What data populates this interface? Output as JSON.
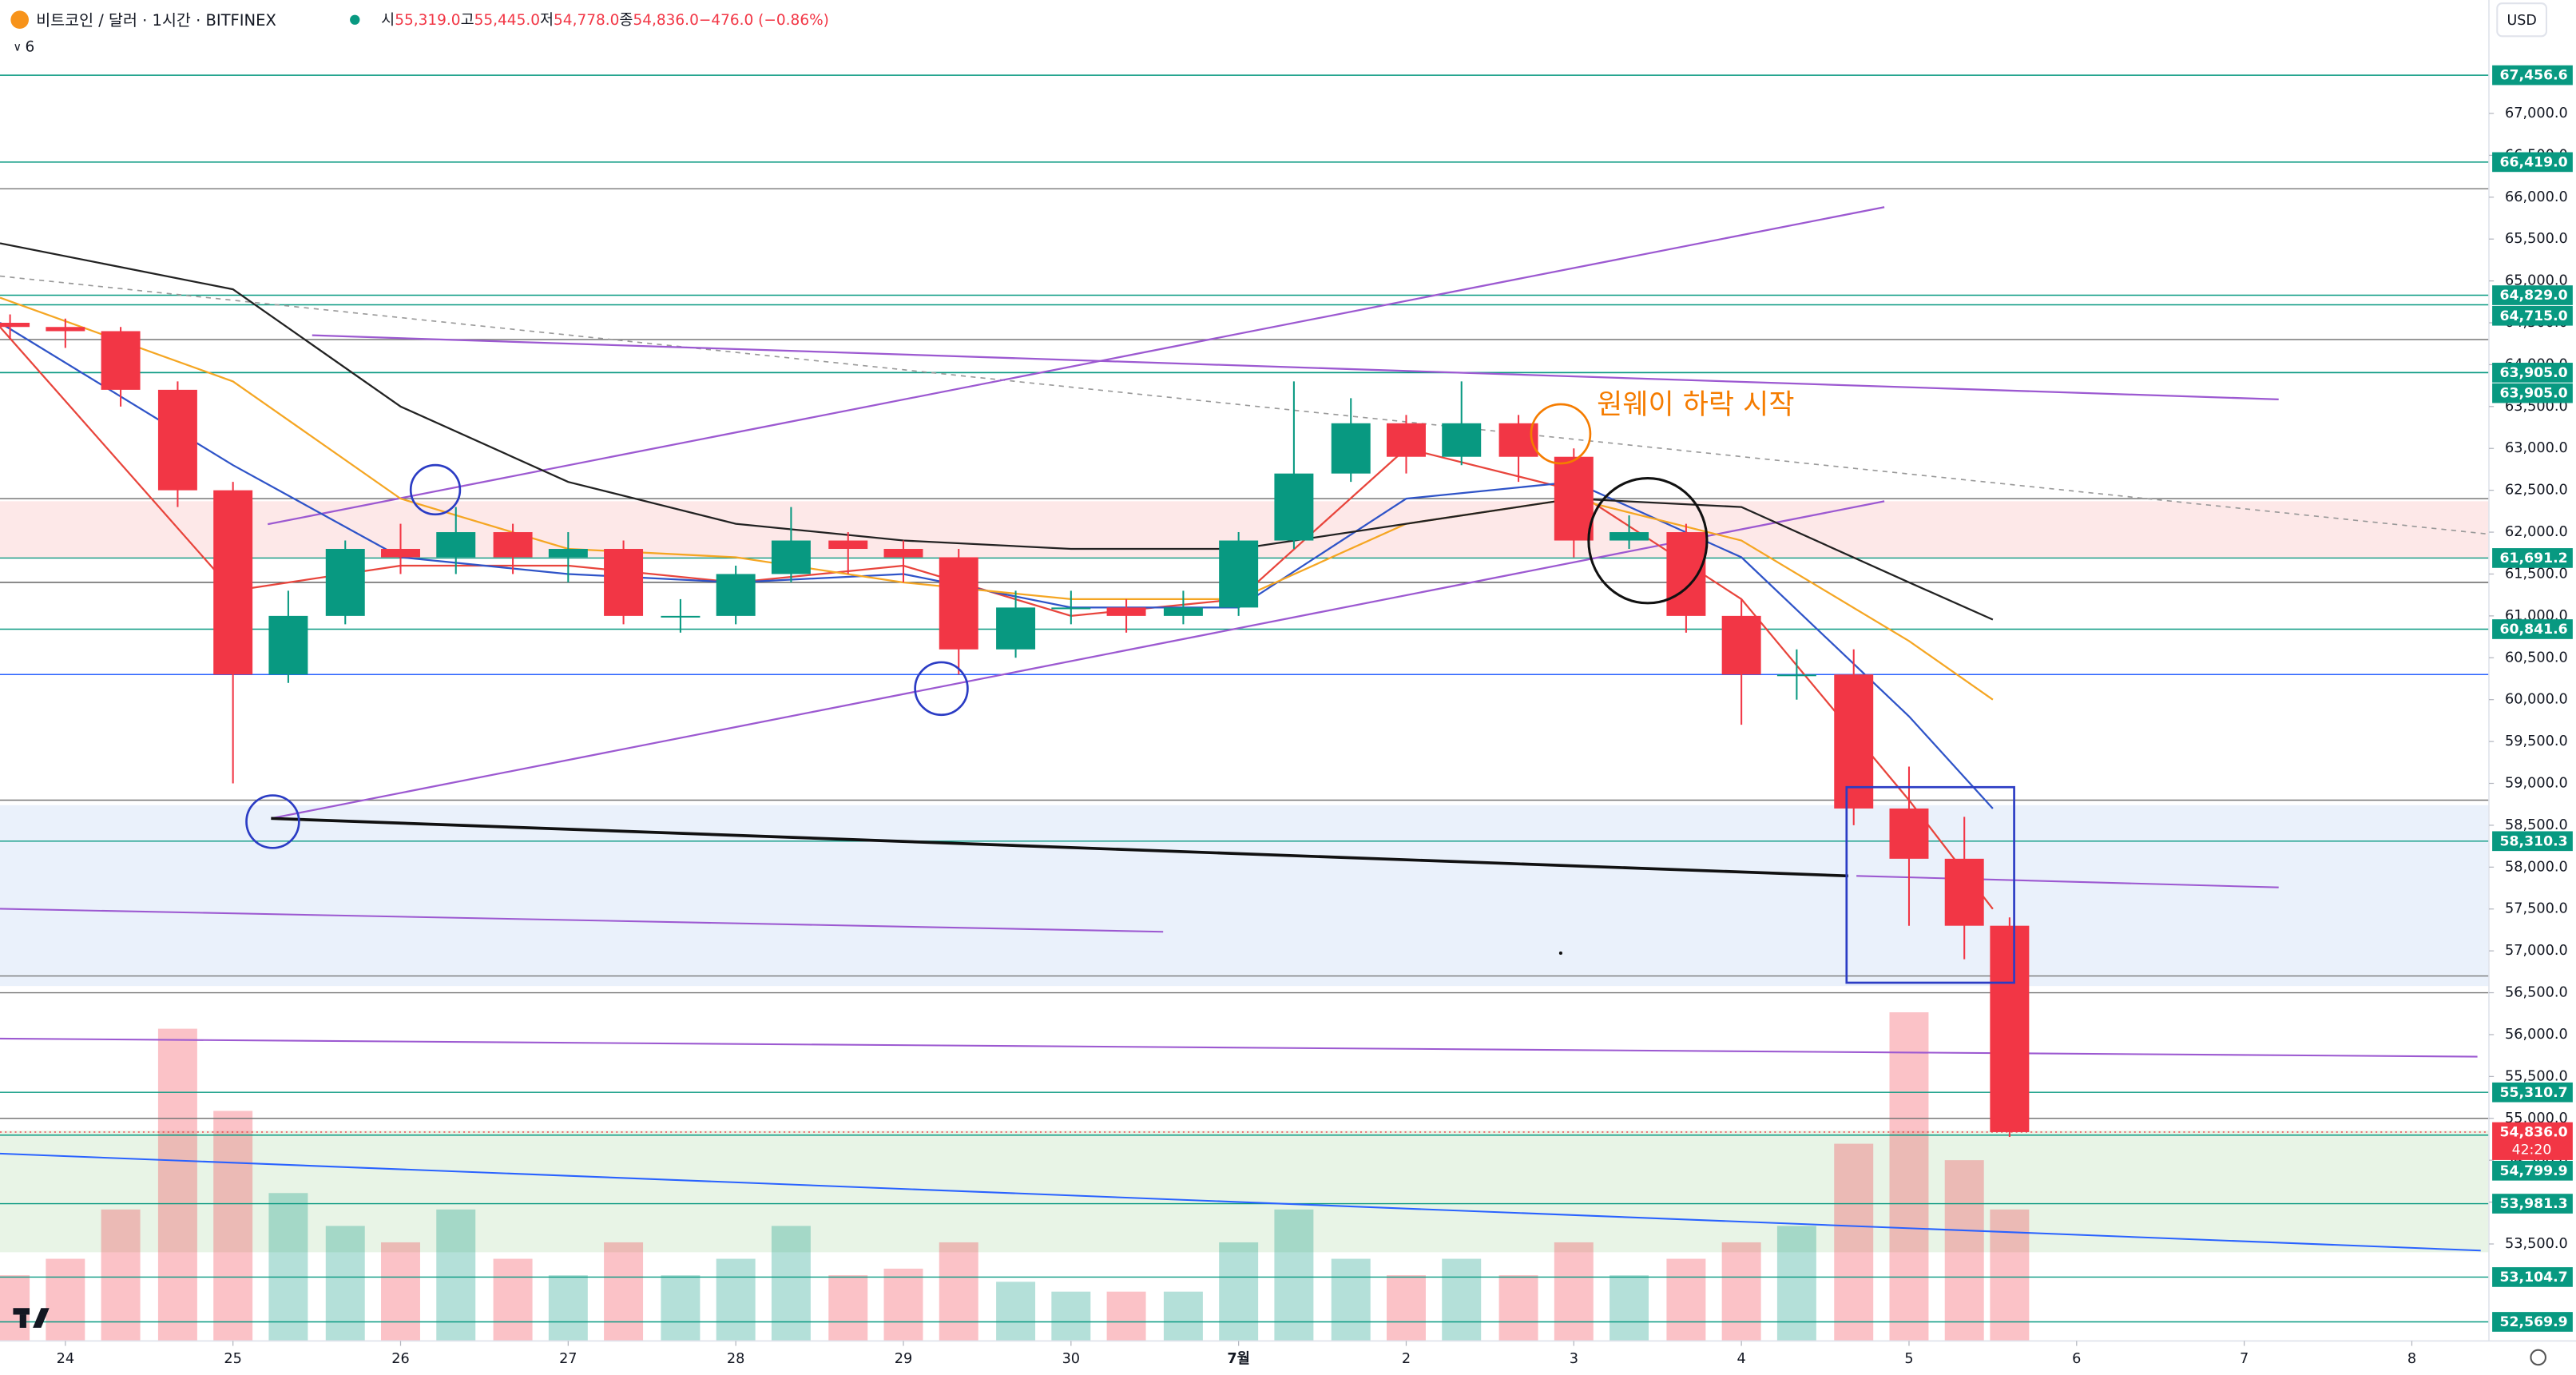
{
  "header": {
    "symbol": "비트코인 / 달러 · 1시간 · BITFINEX",
    "ohlc": [
      {
        "label": "시",
        "value": "55,319.0"
      },
      {
        "label": "고",
        "value": "55,445.0"
      },
      {
        "label": "저",
        "value": "54,778.0"
      },
      {
        "label": "종",
        "value": "54,836.0"
      }
    ],
    "change": "−476.0 (−0.86%)",
    "indicators": "6",
    "currency": "USD"
  },
  "chart_data": {
    "type": "candlestick",
    "up_color": "#089981",
    "down_color": "#f23645",
    "x": [
      -0.33,
      0,
      0.33,
      0.67,
      1,
      1.33,
      1.67,
      2,
      2.33,
      2.67,
      3,
      3.33,
      3.67,
      4,
      4.33,
      4.67,
      5,
      5.33,
      5.67,
      6,
      6.33,
      6.67,
      7,
      7.33,
      7.67,
      8,
      8.33,
      8.67,
      9,
      9.33,
      9.67,
      10,
      10.33,
      10.67,
      11,
      11.33,
      11.6
    ],
    "open": [
      64500,
      64450,
      64400,
      63700,
      62500,
      60300,
      61000,
      61800,
      61700,
      62000,
      61700,
      61800,
      61000,
      61000,
      61500,
      61900,
      61800,
      61700,
      60600,
      61100,
      61100,
      61000,
      61100,
      61900,
      62700,
      63300,
      62900,
      63300,
      62900,
      61900,
      62000,
      61000,
      60300,
      60300,
      58700,
      58100,
      57300
    ],
    "high": [
      64600,
      64550,
      64450,
      63800,
      62600,
      61300,
      61900,
      62100,
      62300,
      62100,
      62000,
      61900,
      61200,
      61600,
      62300,
      62000,
      61900,
      61800,
      61300,
      61300,
      61200,
      61300,
      62000,
      63800,
      63600,
      63400,
      63800,
      63400,
      63000,
      62200,
      62100,
      61200,
      60600,
      60600,
      59200,
      58600,
      57400
    ],
    "low": [
      64300,
      64200,
      63500,
      62300,
      59000,
      60200,
      60900,
      61500,
      61500,
      61500,
      61400,
      60900,
      60800,
      60900,
      61400,
      61500,
      61400,
      60300,
      60500,
      60900,
      60800,
      60900,
      61000,
      61800,
      62600,
      62700,
      62800,
      62600,
      61700,
      61800,
      60800,
      59700,
      60000,
      58500,
      57300,
      56900,
      54778
    ],
    "close": [
      64450,
      64400,
      63700,
      62500,
      60300,
      61000,
      61800,
      61700,
      62000,
      61700,
      61800,
      61000,
      61000,
      61500,
      61900,
      61800,
      61700,
      60600,
      61100,
      61100,
      61000,
      61100,
      61900,
      62700,
      63300,
      62900,
      63300,
      62900,
      61900,
      62000,
      61000,
      60300,
      60300,
      58700,
      58100,
      57300,
      54836
    ],
    "volume": [
      20,
      25,
      40,
      95,
      70,
      45,
      35,
      30,
      40,
      25,
      20,
      30,
      20,
      25,
      35,
      20,
      22,
      30,
      18,
      15,
      15,
      15,
      30,
      40,
      25,
      20,
      25,
      20,
      30,
      20,
      25,
      30,
      35,
      60,
      100,
      55,
      40
    ],
    "moving_averages": [
      {
        "color": "#e8453c",
        "x": [
          -0.39,
          1,
          2,
          3,
          4,
          5,
          6,
          7,
          8,
          9,
          10,
          11,
          11.5
        ],
        "values": [
          64450,
          61300,
          61600,
          61600,
          61400,
          61600,
          61000,
          61200,
          63000,
          62500,
          61200,
          58800,
          57500
        ]
      },
      {
        "color": "#2f54c8",
        "x": [
          -0.39,
          1,
          2,
          3,
          4,
          5,
          6,
          7,
          8,
          9,
          10,
          11,
          11.5
        ],
        "values": [
          64500,
          62800,
          61700,
          61500,
          61400,
          61500,
          61100,
          61100,
          62400,
          62600,
          61700,
          59800,
          58700
        ]
      },
      {
        "color": "#f5a623",
        "x": [
          -0.39,
          1,
          2,
          3,
          4,
          5,
          6,
          7,
          8,
          9,
          10,
          11,
          11.5
        ],
        "values": [
          64800,
          63800,
          62400,
          61800,
          61700,
          61400,
          61200,
          61200,
          62100,
          62400,
          61900,
          60700,
          60000
        ]
      },
      {
        "color": "#222222",
        "x": [
          -0.39,
          1,
          2,
          3,
          4,
          5,
          6,
          7,
          8,
          9,
          10,
          11,
          11.5
        ],
        "values": [
          65450,
          64900,
          63500,
          62600,
          62100,
          61900,
          61800,
          61800,
          62100,
          62400,
          62300,
          61400,
          60956
        ]
      }
    ],
    "levels": [
      {
        "value": 67456.6,
        "label": "67,456.6"
      },
      {
        "value": 66419.0,
        "label": "66,419.0"
      },
      {
        "value": 64829.0,
        "label": "64,829.0"
      },
      {
        "value": 64715.0,
        "label": "64,715.0"
      },
      {
        "value": 63905.0,
        "label": "63,905.0"
      },
      {
        "value": 63905.0,
        "label": "63,905.0"
      },
      {
        "value": 61691.2,
        "label": "61,691.2"
      },
      {
        "value": 60841.6,
        "label": "60,841.6"
      },
      {
        "value": 58310.3,
        "label": "58,310.3"
      },
      {
        "value": 55310.7,
        "label": "55,310.7"
      },
      {
        "value": 54799.9,
        "label": "54,799.9"
      },
      {
        "value": 53981.3,
        "label": "53,981.3"
      },
      {
        "value": 53104.7,
        "label": "53,104.7"
      },
      {
        "value": 52569.9,
        "label": "52,569.9"
      }
    ],
    "current": {
      "value": 54836.0,
      "label": "54,836.0",
      "countdown": "42:20"
    },
    "plain_levels": [
      66100,
      64300,
      62400,
      61400,
      60300,
      58800,
      56700,
      56500,
      55000
    ],
    "zones": [
      {
        "top": 62369,
        "bottom": 61683,
        "color": "#fde8e8"
      },
      {
        "top": 58740,
        "bottom": 56580,
        "color": "#eaf1fb"
      },
      {
        "top": 54853,
        "bottom": 53401,
        "color": "#e8f4e6"
      }
    ],
    "annotation": "원웨이 하락 시작",
    "xlim": [
      -0.39,
      14.46
    ],
    "xticks": [
      {
        "value": 0,
        "label": "24"
      },
      {
        "value": 1,
        "label": "25"
      },
      {
        "value": 2,
        "label": "26"
      },
      {
        "value": 3,
        "label": "27"
      },
      {
        "value": 4,
        "label": "28"
      },
      {
        "value": 5,
        "label": "29"
      },
      {
        "value": 6,
        "label": "30"
      },
      {
        "value": 7,
        "label": "7월"
      },
      {
        "value": 8,
        "label": "2"
      },
      {
        "value": 9,
        "label": "3"
      },
      {
        "value": 10,
        "label": "4"
      },
      {
        "value": 11,
        "label": "5"
      },
      {
        "value": 12,
        "label": "6"
      },
      {
        "value": 13,
        "label": "7"
      },
      {
        "value": 14,
        "label": "8"
      }
    ],
    "ylim": [
      52342,
      68354
    ],
    "yticks": [
      {
        "value": 53500,
        "label": "53,500.0"
      },
      {
        "value": 54000,
        "label": "54,000.0"
      },
      {
        "value": 54500,
        "label": "54,500.0"
      },
      {
        "value": 55000,
        "label": "55,000.0"
      },
      {
        "value": 55500,
        "label": "55,500.0"
      },
      {
        "value": 56000,
        "label": "56,000.0"
      },
      {
        "value": 56500,
        "label": "56,500.0"
      },
      {
        "value": 57000,
        "label": "57,000.0"
      },
      {
        "value": 57500,
        "label": "57,500.0"
      },
      {
        "value": 58000,
        "label": "58,000.0"
      },
      {
        "value": 58500,
        "label": "58,500.0"
      },
      {
        "value": 59000,
        "label": "59,000.0"
      },
      {
        "value": 59500,
        "label": "59,500.0"
      },
      {
        "value": 60000,
        "label": "60,000.0"
      },
      {
        "value": 60500,
        "label": "60,500.0"
      },
      {
        "value": 61000,
        "label": "61,000.0"
      },
      {
        "value": 61500,
        "label": "61,500.0"
      },
      {
        "value": 62000,
        "label": "62,000.0"
      },
      {
        "value": 62500,
        "label": "62,500.0"
      },
      {
        "value": 63000,
        "label": "63,000.0"
      },
      {
        "value": 63500,
        "label": "63,500.0"
      },
      {
        "value": 64000,
        "label": "64,000.0"
      },
      {
        "value": 64500,
        "label": "64,500.0"
      },
      {
        "value": 65000,
        "label": "65,000.0"
      },
      {
        "value": 65500,
        "label": "65,500.0"
      },
      {
        "value": 66000,
        "label": "66,000.0"
      },
      {
        "value": 66500,
        "label": "66,500.0"
      },
      {
        "value": 67000,
        "label": "67,000.0"
      }
    ]
  }
}
